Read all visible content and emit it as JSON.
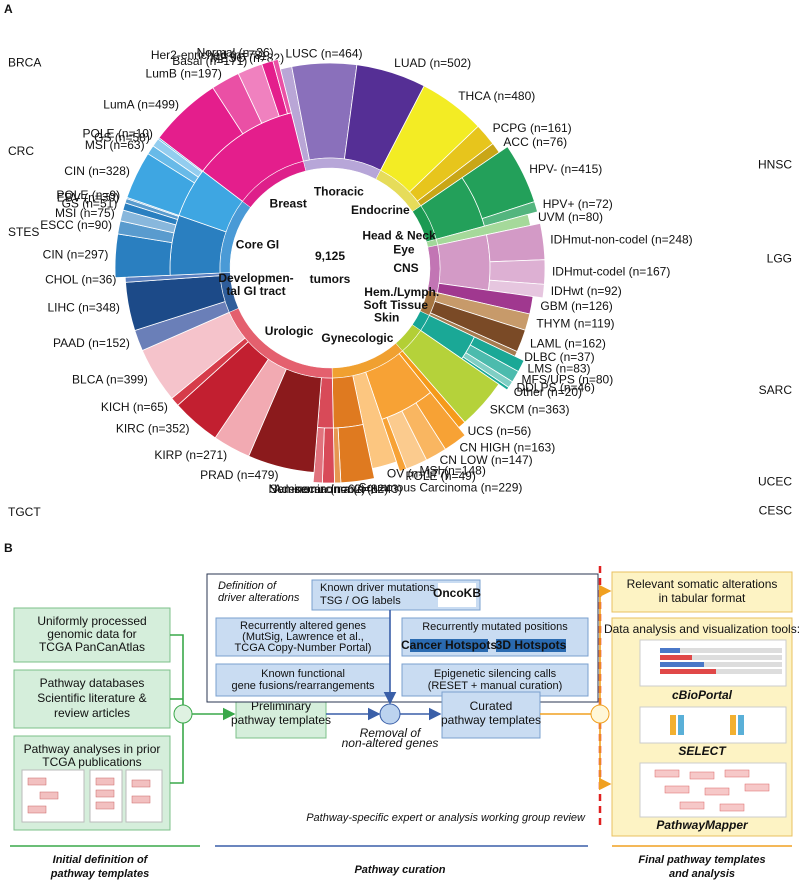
{
  "panel_a": {
    "label": "A",
    "total": "9,125",
    "total_unit": "tumors",
    "systems": [
      {
        "lines": [
          "Thoracic"
        ],
        "color": "#b7a6d8",
        "types": [
          {
            "label": "MESO (n=82)",
            "n": 82,
            "color": "#b9a6d6"
          },
          {
            "label": "LUSC (n=464)",
            "n": 464,
            "color": "#8a70bb"
          },
          {
            "label": "LUAD (n=502)",
            "n": 502,
            "color": "#552f95"
          }
        ]
      },
      {
        "lines": [
          "Endocrine"
        ],
        "color": "#e6dc5a",
        "types": [
          {
            "label": "THCA (n=480)",
            "n": 480,
            "color": "#f3ec24"
          },
          {
            "label": "PCPG (n=161)",
            "n": 161,
            "color": "#e7c51c"
          },
          {
            "label": "ACC (n=76)",
            "n": 76,
            "color": "#c9a617"
          }
        ]
      },
      {
        "lines": [
          "Head & Neck"
        ],
        "color": "#1b9a52",
        "types": [
          {
            "name": "HNSC",
            "color": "#23a05a",
            "subtypes": [
              {
                "label": "HPV- (n=415)",
                "n": 415
              },
              {
                "label": "HPV+ (n=72)",
                "n": 72
              }
            ]
          }
        ]
      },
      {
        "lines": [
          "Eye"
        ],
        "color": "#a2d89a",
        "types": [
          {
            "label": "UVM (n=80)",
            "n": 80,
            "color": "#a5d99a"
          }
        ]
      },
      {
        "lines": [
          "CNS"
        ],
        "color": "#c275b4",
        "types": [
          {
            "name": "LGG",
            "color": "#d39ac6",
            "subtypes": [
              {
                "label": "IDHmut-non-codel (n=248)",
                "n": 248
              },
              {
                "label": "IDHmut-codel (n=167)",
                "n": 167
              },
              {
                "label": "IDHwt (n=92)",
                "n": 92
              }
            ]
          },
          {
            "label": "GBM (n=126)",
            "n": 126,
            "color": "#a0388f"
          }
        ]
      },
      {
        "lines": [
          "Hem./Lymph."
        ],
        "color": "#a5743f",
        "types": [
          {
            "label": "THYM (n=119)",
            "n": 119,
            "color": "#c79a6a"
          },
          {
            "label": "LAML (n=162)",
            "n": 162,
            "color": "#7a4a26"
          },
          {
            "label": "DLBC (n=37)",
            "n": 37,
            "color": "#a67b4f"
          }
        ]
      },
      {
        "lines": [
          "Soft Tissue"
        ],
        "color": "#17a595",
        "types": [
          {
            "name": "SARC",
            "color": "#1aa896",
            "subtypes": [
              {
                "label": "LMS (n=83)",
                "n": 83
              },
              {
                "label": "MFS/UPS (n=80)",
                "n": 80
              },
              {
                "label": "DDLPS (n=46)",
                "n": 46
              },
              {
                "label": "Other (n=20)",
                "n": 20
              }
            ]
          }
        ]
      },
      {
        "lines": [
          "Skin"
        ],
        "color": "#b3cf35",
        "types": [
          {
            "label": "SKCM (n=363)",
            "n": 363,
            "color": "#b5d23a"
          }
        ]
      },
      {
        "lines": [
          "Gynecologic"
        ],
        "color": "#f0a030",
        "types": [
          {
            "label": "UCS (n=56)",
            "n": 56,
            "color": "#f59a1a"
          },
          {
            "name": "UCEC",
            "color": "#f7a235",
            "subtypes": [
              {
                "label": "CN HIGH (n=163)",
                "n": 163
              },
              {
                "label": "CN LOW (n=147)",
                "n": 147
              },
              {
                "label": "MSI (n=148)",
                "n": 148
              },
              {
                "label": "POLE (n=49)",
                "n": 49
              }
            ]
          },
          {
            "label": "OV (n=177)",
            "n": 177,
            "color": "#fcc680"
          },
          {
            "name": "CESC",
            "color": "#df7a20",
            "subtypes": [
              {
                "label": "Squamous Carcinoma (n=229)",
                "n": 229
              },
              {
                "label": "Adenocarcinoma (n=43)",
                "n": 43
              }
            ]
          }
        ]
      },
      {
        "lines": [
          "Urologic"
        ],
        "color": "#e4606e",
        "types": [
          {
            "name": "TGCT",
            "color": "#d84a58",
            "subtypes": [
              {
                "label": "Non-seminoma (n=82)",
                "n": 82
              },
              {
                "label": "Seminoma (n=62)",
                "n": 62
              }
            ]
          },
          {
            "label": "PRAD (n=479)",
            "n": 479,
            "color": "#8b1a1c"
          },
          {
            "label": "KIRP (n=271)",
            "n": 271,
            "color": "#f2aab2"
          },
          {
            "label": "KIRC (n=352)",
            "n": 352,
            "color": "#c21f30"
          },
          {
            "label": "KICH (n=65)",
            "n": 65,
            "color": "#d63c4a"
          },
          {
            "label": "BLCA (n=399)",
            "n": 399,
            "color": "#f5c3cb"
          }
        ]
      },
      {
        "lines": [
          "Developmen-",
          "tal GI tract"
        ],
        "color": "#2f5d9a",
        "types": [
          {
            "label": "PAAD (n=152)",
            "n": 152,
            "color": "#6a7fb8"
          },
          {
            "label": "LIHC (n=348)",
            "n": 348,
            "color": "#1c4a88"
          },
          {
            "label": "CHOL (n=36)",
            "n": 36,
            "color": "#5a80c0"
          }
        ]
      },
      {
        "lines": [
          "Core GI"
        ],
        "color": "#4a9ad6",
        "types": [
          {
            "name": "STES",
            "color": "#2a7fc0",
            "subtypes": [
              {
                "label": "CIN (n=297)",
                "n": 297
              },
              {
                "label": "ESCC (n=90)",
                "n": 90
              },
              {
                "label": "MSI (n=75)",
                "n": 75
              },
              {
                "label": "GS (n=51)",
                "n": 51
              },
              {
                "label": "EBV (n=30)",
                "n": 30
              },
              {
                "label": "POLE (n=9)",
                "n": 9
              }
            ]
          },
          {
            "name": "CRC",
            "color": "#3ea6e2",
            "subtypes": [
              {
                "label": "CIN (n=328)",
                "n": 328
              },
              {
                "label": "MSI (n=63)",
                "n": 63
              },
              {
                "label": "GS (n=58)",
                "n": 58
              },
              {
                "label": "POLE (n=10)",
                "n": 10
              }
            ]
          }
        ]
      },
      {
        "lines": [
          "Breast"
        ],
        "color": "#de1f8a",
        "types": [
          {
            "name": "BRCA",
            "color": "#e41e8c",
            "subtypes": [
              {
                "label": "LumA (n=499)",
                "n": 499
              },
              {
                "label": "LumB (n=197)",
                "n": 197
              },
              {
                "label": "Basal (n=171)",
                "n": 171
              },
              {
                "label": "Her2-enriched (n=78)",
                "n": 78
              },
              {
                "label": "Normal (n=36)",
                "n": 36
              }
            ]
          }
        ]
      }
    ]
  },
  "panel_b": {
    "label": "B",
    "sources": [
      [
        "Uniformly processed",
        "genomic data for",
        "TCGA PanCanAtlas"
      ],
      [
        "Pathway databases",
        "Scientific literature &",
        "review articles"
      ],
      [
        "Pathway analyses in prior",
        "TCGA publications"
      ]
    ],
    "preliminary": [
      "Preliminary",
      "pathway templates"
    ],
    "definition_title": [
      "Definition of",
      "driver alterations"
    ],
    "oncokb": {
      "lines": [
        "Known driver mutations",
        "TSG / OG labels"
      ],
      "logo": "OncoKB"
    },
    "evidence": [
      [
        "Recurrently altered genes",
        "(MutSig, Lawrence et al.,",
        "TCGA Copy-Number Portal)"
      ],
      [
        "Recurrently mutated positions"
      ],
      [
        "Known functional",
        "gene fusions/rearrangements"
      ],
      [
        "Epigenetic silencing calls",
        "(RESET + manual curation)"
      ]
    ],
    "hotspots": [
      "Cancer Hotspots",
      "3D Hotspots"
    ],
    "removal": [
      "Removal of",
      "non-altered genes"
    ],
    "curated": [
      "Curated",
      "pathway templates"
    ],
    "review": "Pathway-specific expert or analysis working group review",
    "tabular": [
      "Relevant somatic alterations",
      "in tabular format"
    ],
    "tools_title": "Data analysis and visualization tools:",
    "tools": [
      "cBioPortal",
      "SELECT",
      "PathwayMapper"
    ],
    "stages": [
      [
        "Initial definition of",
        "pathway templates"
      ],
      [
        "Pathway curation"
      ],
      [
        "Final pathway templates",
        "and analysis"
      ]
    ]
  }
}
